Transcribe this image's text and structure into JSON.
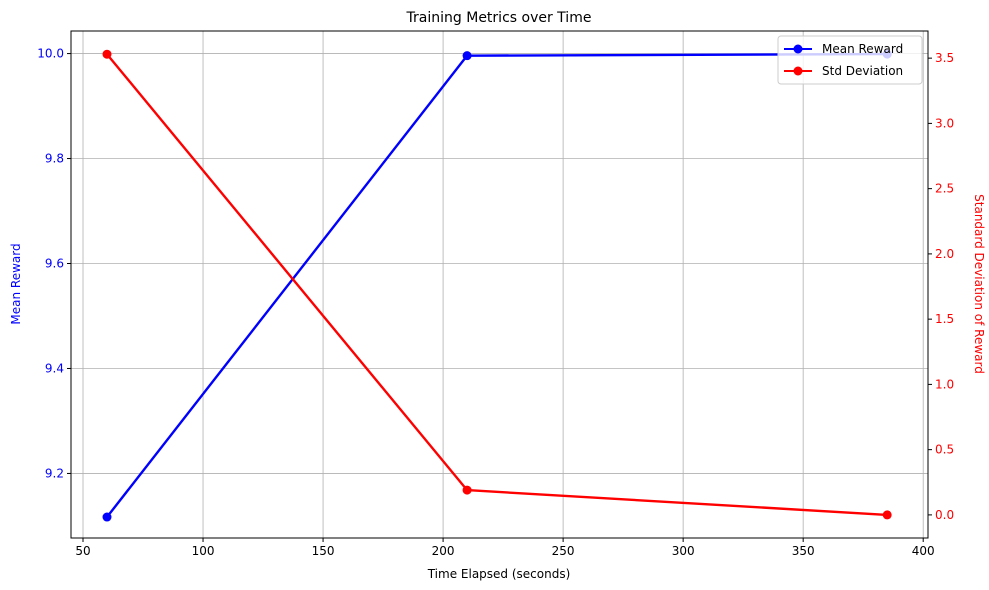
{
  "chart_data": {
    "type": "line",
    "title": "Training Metrics over Time",
    "xlabel": "Time Elapsed (seconds)",
    "ylabel_left": "Mean Reward",
    "ylabel_right": "Standard Deviation of Reward",
    "x": [
      60,
      210,
      385
    ],
    "xlim": [
      45,
      402
    ],
    "xticks": [
      50,
      100,
      150,
      200,
      250,
      300,
      350,
      400
    ],
    "ylim_left": [
      9.077,
      10.043
    ],
    "yticks_left": [
      9.2,
      9.4,
      9.6,
      9.8,
      10.0
    ],
    "ylim_right": [
      -0.177,
      3.708
    ],
    "yticks_right": [
      0.0,
      0.5,
      1.0,
      1.5,
      2.0,
      2.5,
      3.0,
      3.5
    ],
    "grid": true,
    "legend": "top-right",
    "series": [
      {
        "name": "Mean Reward",
        "axis": "left",
        "color": "#0000ff",
        "values": [
          9.117,
          9.996,
          9.999
        ]
      },
      {
        "name": "Std Deviation",
        "axis": "right",
        "color": "#ff0000",
        "values": [
          3.53,
          0.19,
          0.0
        ]
      }
    ]
  }
}
